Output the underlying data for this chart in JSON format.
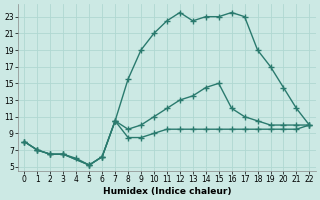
{
  "line1": {
    "x": [
      0,
      1,
      2,
      3,
      4,
      5,
      6,
      7,
      8,
      9,
      10,
      11,
      12,
      13,
      14,
      15,
      16,
      17,
      18,
      19,
      20,
      21,
      22
    ],
    "y": [
      8,
      7,
      6.5,
      6.5,
      6,
      5.2,
      6.2,
      10.5,
      15.5,
      19,
      21,
      22.5,
      23.5,
      22.5,
      23,
      23,
      23.5,
      23,
      19,
      17,
      14.5,
      12,
      10
    ]
  },
  "line2": {
    "x": [
      0,
      1,
      2,
      3,
      5,
      6,
      7,
      8,
      9,
      10,
      11,
      12,
      13,
      14,
      15,
      16,
      17,
      18,
      19,
      20,
      21,
      22
    ],
    "y": [
      8,
      7,
      6.5,
      6.5,
      5.2,
      6.2,
      10.5,
      9.5,
      10,
      11,
      12,
      13,
      13.5,
      14.5,
      15,
      12,
      11,
      10.5,
      10,
      10,
      10,
      10
    ]
  },
  "line3": {
    "x": [
      0,
      1,
      2,
      3,
      5,
      6,
      7,
      8,
      9,
      10,
      11,
      12,
      13,
      14,
      15,
      16,
      17,
      18,
      19,
      20,
      21,
      22
    ],
    "y": [
      8,
      7,
      6.5,
      6.5,
      5.2,
      6.2,
      10.5,
      8.5,
      8.5,
      9,
      9.5,
      9.5,
      9.5,
      9.5,
      9.5,
      9.5,
      9.5,
      9.5,
      9.5,
      9.5,
      9.5,
      10
    ]
  },
  "line_color": "#2a7a6e",
  "bg_color": "#cce9e4",
  "grid_color": "#b0d8d2",
  "xlabel": "Humidex (Indice chaleur)",
  "xlim": [
    -0.5,
    22.5
  ],
  "ylim": [
    4.5,
    24.5
  ],
  "yticks": [
    5,
    7,
    9,
    11,
    13,
    15,
    17,
    19,
    21,
    23
  ],
  "xticks": [
    0,
    1,
    2,
    3,
    4,
    5,
    6,
    7,
    8,
    9,
    10,
    11,
    12,
    13,
    14,
    15,
    16,
    17,
    18,
    19,
    20,
    21,
    22
  ],
  "marker": "+",
  "markersize": 4,
  "linewidth": 1.0
}
